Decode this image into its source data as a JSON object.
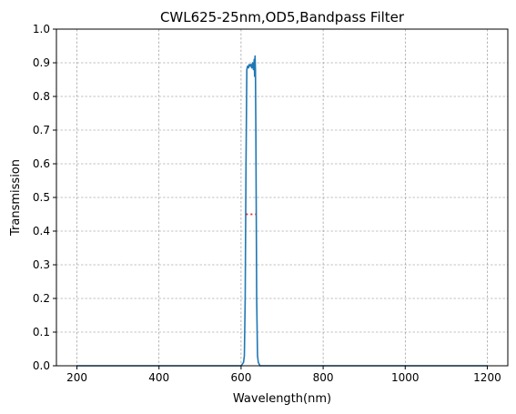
{
  "chart_data": {
    "type": "line",
    "title": "CWL625-25nm,OD5,Bandpass Filter",
    "xlabel": "Wavelength(nm)",
    "ylabel": "Transmission",
    "xlim": [
      150,
      1250
    ],
    "ylim": [
      0,
      1.0
    ],
    "x_ticks": [
      200,
      400,
      600,
      800,
      1000,
      1200
    ],
    "y_ticks": [
      0.0,
      0.1,
      0.2,
      0.3,
      0.4,
      0.5,
      0.6,
      0.7,
      0.8,
      0.9,
      1.0
    ],
    "x_tick_labels": [
      "200",
      "400",
      "600",
      "800",
      "1000",
      "1200"
    ],
    "y_tick_labels": [
      "0.0",
      "0.1",
      "0.2",
      "0.3",
      "0.4",
      "0.5",
      "0.6",
      "0.7",
      "0.8",
      "0.9",
      "1.0"
    ],
    "grid": true,
    "series": [
      {
        "color": "#1f77b4",
        "x": [
          200,
          600,
          606,
          608,
          610,
          612,
          614,
          616,
          618,
          620,
          622,
          624,
          626,
          628,
          630,
          632,
          633,
          634,
          635,
          636,
          637,
          638,
          640,
          642,
          644,
          646,
          650,
          1200
        ],
        "y": [
          0.0,
          0.0,
          0.01,
          0.03,
          0.2,
          0.6,
          0.88,
          0.89,
          0.885,
          0.895,
          0.89,
          0.895,
          0.885,
          0.9,
          0.88,
          0.91,
          0.86,
          0.92,
          0.88,
          0.7,
          0.45,
          0.2,
          0.03,
          0.01,
          0.005,
          0.0,
          0.0,
          0.0
        ]
      }
    ],
    "fwhm_marker": {
      "color": "#d62728",
      "y": 0.45,
      "x_start": 612,
      "x_end": 637
    }
  }
}
